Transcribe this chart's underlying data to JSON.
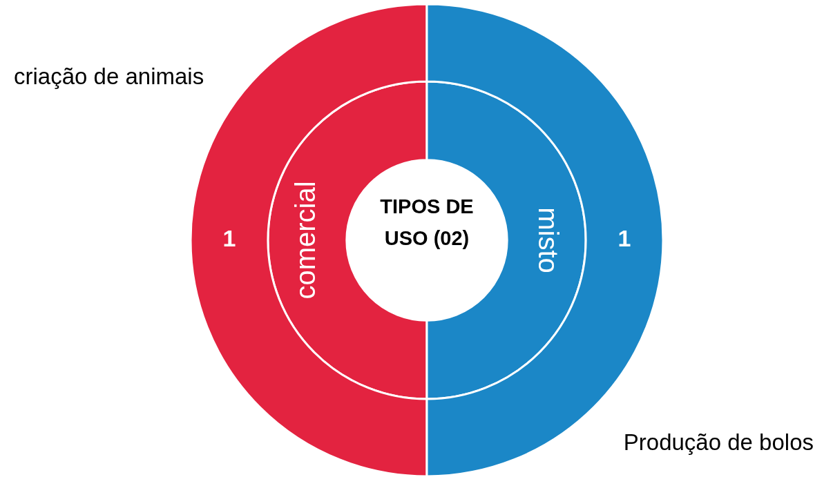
{
  "chart_data": {
    "type": "donut",
    "title": "TIPOS DE USO (02)",
    "categories": [
      "comercial",
      "misto"
    ],
    "series": [
      {
        "colors": [
          "#e32340",
          "#1b87c7"
        ],
        "values": [
          1,
          1
        ],
        "data_labels": true
      },
      {
        "colors": [
          "#e32340",
          "#1b87c7"
        ],
        "values": [
          50,
          50
        ]
      }
    ],
    "legend": false,
    "annotations": [
      "criação de animais",
      "Produção de bolos"
    ]
  }
}
